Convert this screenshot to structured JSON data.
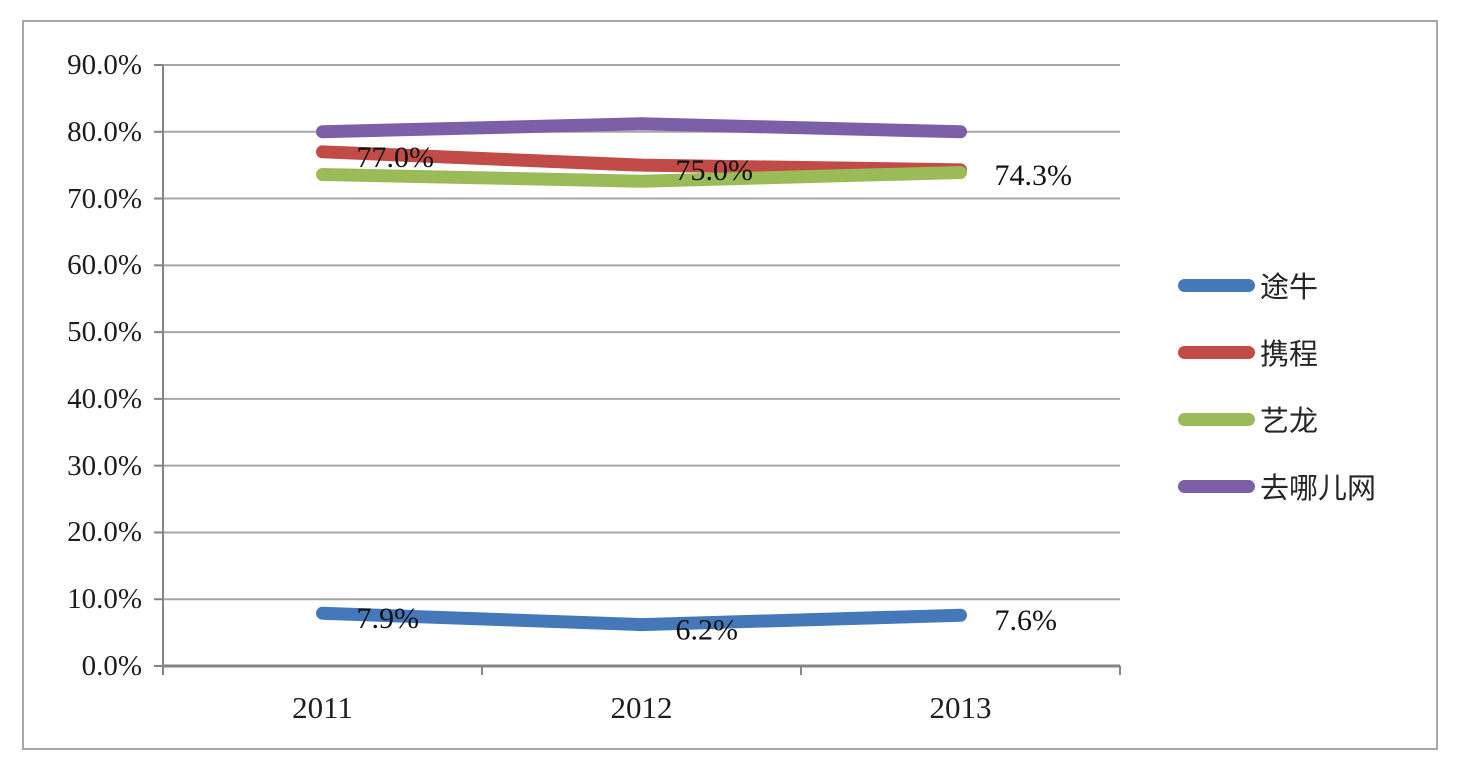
{
  "chart_data": {
    "type": "line",
    "title": "",
    "xlabel": "",
    "ylabel": "",
    "categories": [
      "2011",
      "2012",
      "2013"
    ],
    "series": [
      {
        "name": "途牛",
        "color": "#4478B8",
        "values": [
          7.9,
          6.2,
          7.6
        ],
        "point_labels": [
          "7.9%",
          "6.2%",
          "7.6%"
        ]
      },
      {
        "name": "携程",
        "color": "#C14B47",
        "values": [
          77.0,
          75.0,
          74.3
        ],
        "point_labels": [
          "77.0%",
          "75.0%",
          "74.3%"
        ]
      },
      {
        "name": "艺龙",
        "color": "#9BBB59",
        "values": [
          73.6,
          72.6,
          73.9
        ],
        "point_labels": [
          "",
          "",
          ""
        ]
      },
      {
        "name": "去哪儿网",
        "color": "#7C5FA6",
        "values": [
          80.0,
          81.2,
          80.0
        ],
        "point_labels": [
          "",
          "",
          ""
        ]
      }
    ],
    "ylim": [
      0,
      90
    ],
    "ytick_step": 10,
    "ytick_labels": [
      "0.0%",
      "10.0%",
      "20.0%",
      "30.0%",
      "40.0%",
      "50.0%",
      "60.0%",
      "70.0%",
      "80.0%",
      "90.0%"
    ],
    "grid": true,
    "legend_position": "right"
  },
  "styles": {
    "background": "#FFFFFF",
    "frame_border_color": "#A8A8A8",
    "grid_color": "#A6A6A6",
    "axis_color": "#858585",
    "text_color": "#1D1D1D",
    "data_label_color": "#111111"
  }
}
